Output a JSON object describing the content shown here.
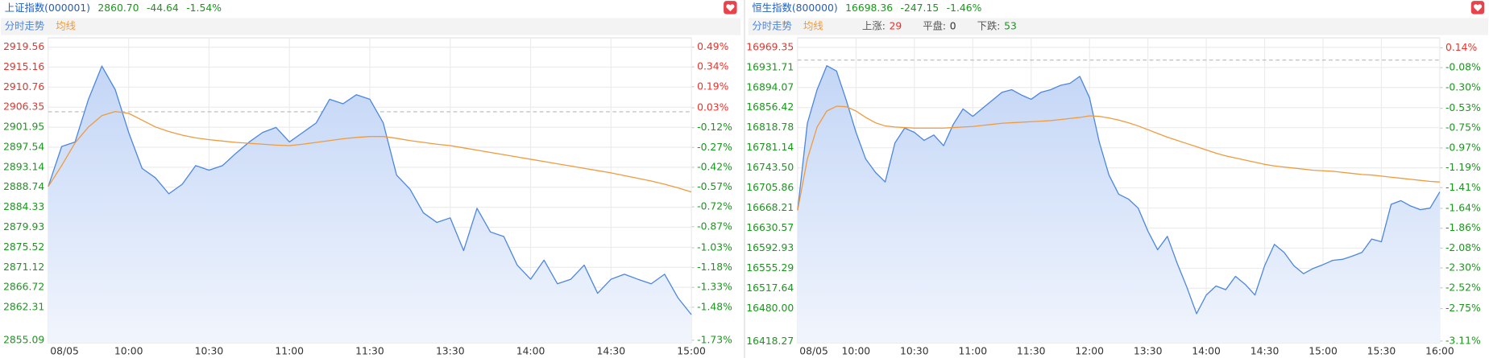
{
  "chart_data": [
    {
      "type": "line",
      "title": "上证指数(000001)",
      "last": "2860.70",
      "change": "-44.64",
      "change_pct": "-1.54%",
      "title_color": "#1f5fbf",
      "up_color": "#e8332b",
      "down_color": "#17991a",
      "prev_close": 2905.34,
      "x": [
        0,
        5,
        10,
        15,
        20,
        25,
        30,
        35,
        40,
        45,
        50,
        55,
        60,
        65,
        70,
        75,
        80,
        85,
        90,
        95,
        100,
        105,
        110,
        115,
        120,
        125,
        130,
        135,
        140,
        145,
        150,
        155,
        160,
        165,
        170,
        175,
        180,
        185,
        190,
        195,
        200,
        205,
        210,
        215,
        220,
        225,
        230,
        235,
        240
      ],
      "xlim": [
        0,
        240
      ],
      "xticks": [
        {
          "value": 0,
          "label": "08/05"
        },
        {
          "value": 30,
          "label": "10:00"
        },
        {
          "value": 60,
          "label": "10:30"
        },
        {
          "value": 90,
          "label": "11:00"
        },
        {
          "value": 120,
          "label": "11:30"
        },
        {
          "value": 150,
          "label": "13:30"
        },
        {
          "value": 180,
          "label": "14:00"
        },
        {
          "value": 210,
          "label": "14:30"
        },
        {
          "value": 240,
          "label": "15:00"
        }
      ],
      "ylim": [
        2854.5,
        2921.6
      ],
      "yticks": [
        2919.56,
        2915.16,
        2910.76,
        2906.35,
        2901.95,
        2897.54,
        2893.14,
        2888.74,
        2884.33,
        2879.93,
        2875.52,
        2871.12,
        2866.72,
        2862.31,
        2855.09
      ],
      "y2lim": [
        -1.75,
        0.56
      ],
      "y2ticks": [
        {
          "value": 0.49,
          "label": "0.49%"
        },
        {
          "value": 0.34,
          "label": "0.34%"
        },
        {
          "value": 0.19,
          "label": "0.19%"
        },
        {
          "value": 0.03,
          "label": "0.03%"
        },
        {
          "value": -0.12,
          "label": "-0.12%"
        },
        {
          "value": -0.27,
          "label": "-0.27%"
        },
        {
          "value": -0.42,
          "label": "-0.42%"
        },
        {
          "value": -0.57,
          "label": "-0.57%"
        },
        {
          "value": -0.72,
          "label": "-0.72%"
        },
        {
          "value": -0.87,
          "label": "-0.87%"
        },
        {
          "value": -1.03,
          "label": "-1.03%"
        },
        {
          "value": -1.18,
          "label": "-1.18%"
        },
        {
          "value": -1.33,
          "label": "-1.33%"
        },
        {
          "value": -1.48,
          "label": "-1.48%"
        },
        {
          "value": -1.73,
          "label": "-1.73%"
        }
      ],
      "grid": true,
      "series": [
        {
          "name": "分时走势",
          "color": "#4b86e0",
          "values": [
            2888.9,
            2897.7,
            2898.7,
            2908.1,
            2915.4,
            2910.2,
            2900.8,
            2892.9,
            2890.8,
            2887.3,
            2889.4,
            2893.5,
            2892.5,
            2893.5,
            2896.2,
            2898.7,
            2900.8,
            2901.9,
            2898.7,
            2900.8,
            2902.9,
            2908.1,
            2907.1,
            2909.1,
            2908.1,
            2902.9,
            2891.4,
            2888.3,
            2883.1,
            2881.0,
            2882.0,
            2874.8,
            2884.1,
            2878.9,
            2877.9,
            2871.6,
            2868.5,
            2872.7,
            2867.5,
            2868.5,
            2871.6,
            2865.4,
            2868.5,
            2869.6,
            2868.5,
            2867.5,
            2869.6,
            2864.4,
            2860.7
          ]
        },
        {
          "name": "均线",
          "color": "#f09a3e",
          "values": [
            2888.9,
            2893.5,
            2898.5,
            2902.0,
            2904.5,
            2905.4,
            2905.0,
            2903.5,
            2902.0,
            2901.0,
            2900.2,
            2899.6,
            2899.2,
            2898.9,
            2898.6,
            2898.4,
            2898.2,
            2898.0,
            2897.9,
            2898.2,
            2898.6,
            2899.0,
            2899.4,
            2899.7,
            2899.9,
            2899.9,
            2899.5,
            2899.0,
            2898.6,
            2898.2,
            2897.9,
            2897.4,
            2896.9,
            2896.4,
            2895.9,
            2895.4,
            2894.9,
            2894.4,
            2893.9,
            2893.4,
            2892.9,
            2892.4,
            2891.9,
            2891.3,
            2890.7,
            2890.1,
            2889.4,
            2888.6,
            2887.7
          ]
        }
      ]
    },
    {
      "type": "line",
      "title": "恒生指数(800000)",
      "last": "16698.36",
      "change": "-247.15",
      "change_pct": "-1.46%",
      "title_color": "#1f5fbf",
      "up_color": "#e8332b",
      "down_color": "#17991a",
      "prev_close": 16945.51,
      "stats": [
        {
          "label": "上涨:",
          "value": 29,
          "color": "#e8332b"
        },
        {
          "label": "平盘:",
          "value": 0,
          "color": "#333333"
        },
        {
          "label": "下跌:",
          "value": 53,
          "color": "#17991a"
        }
      ],
      "x": [
        0,
        5,
        10,
        15,
        20,
        25,
        30,
        35,
        40,
        45,
        50,
        55,
        60,
        65,
        70,
        75,
        80,
        85,
        90,
        95,
        100,
        105,
        110,
        115,
        120,
        125,
        130,
        135,
        140,
        145,
        150,
        155,
        160,
        165,
        170,
        175,
        180,
        185,
        190,
        195,
        200,
        205,
        210,
        215,
        220,
        225,
        230,
        235,
        240,
        245,
        250,
        255,
        260,
        265,
        270,
        275,
        280,
        285,
        290,
        295,
        300,
        305,
        310,
        315,
        320,
        325,
        330
      ],
      "xlim": [
        0,
        330
      ],
      "xticks": [
        {
          "value": 0,
          "label": "08/05"
        },
        {
          "value": 30,
          "label": "10:00"
        },
        {
          "value": 60,
          "label": "10:30"
        },
        {
          "value": 90,
          "label": "11:00"
        },
        {
          "value": 120,
          "label": "11:30"
        },
        {
          "value": 150,
          "label": "12:00"
        },
        {
          "value": 180,
          "label": "13:30"
        },
        {
          "value": 210,
          "label": "14:00"
        },
        {
          "value": 240,
          "label": "14:30"
        },
        {
          "value": 270,
          "label": "15:00"
        },
        {
          "value": 300,
          "label": "15:30"
        },
        {
          "value": 330,
          "label": "16:00"
        }
      ],
      "ylim": [
        16415.4,
        16987.1
      ],
      "yticks": [
        16969.35,
        16931.71,
        16894.07,
        16856.42,
        16818.78,
        16781.14,
        {
          "value": 16743.5,
          "label": "16743.50"
        },
        16705.86,
        16668.21,
        16630.57,
        16592.93,
        16555.29,
        16517.64,
        {
          "value": 16480,
          "label": "16480.00"
        },
        16418.27
      ],
      "y2lim": [
        -3.13,
        0.25
      ],
      "y2ticks": [
        {
          "value": 0.14,
          "label": "0.14%"
        },
        {
          "value": -0.08,
          "label": "-0.08%"
        },
        {
          "value": -0.3,
          "label": "-0.30%"
        },
        {
          "value": -0.53,
          "label": "-0.53%"
        },
        {
          "value": -0.75,
          "label": "-0.75%"
        },
        {
          "value": -0.97,
          "label": "-0.97%"
        },
        {
          "value": -1.19,
          "label": "-1.19%"
        },
        {
          "value": -1.41,
          "label": "-1.41%"
        },
        {
          "value": -1.64,
          "label": "-1.64%"
        },
        {
          "value": -1.86,
          "label": "-1.86%"
        },
        {
          "value": -2.08,
          "label": "-2.08%"
        },
        {
          "value": -2.3,
          "label": "-2.30%"
        },
        {
          "value": -2.52,
          "label": "-2.52%"
        },
        {
          "value": -2.75,
          "label": "-2.75%"
        },
        {
          "value": -3.11,
          "label": "-3.11%"
        }
      ],
      "grid": true,
      "series": [
        {
          "name": "分时走势",
          "color": "#4b86e0",
          "values": [
            16664,
            16827,
            16890,
            16935,
            16925,
            16870,
            16810,
            16760,
            16735,
            16717,
            16790,
            16818,
            16810,
            16795,
            16805,
            16785,
            16825,
            16854,
            16840,
            16855,
            16870,
            16885,
            16890,
            16880,
            16872,
            16885,
            16890,
            16898,
            16902,
            16915,
            16875,
            16792,
            16730,
            16694,
            16685,
            16668,
            16625,
            16590,
            16615,
            16565,
            16520,
            16470,
            16505,
            16522,
            16515,
            16540,
            16525,
            16505,
            16560,
            16600,
            16585,
            16560,
            16545,
            16555,
            16562,
            16570,
            16572,
            16578,
            16585,
            16610,
            16605,
            16675,
            16682,
            16672,
            16665,
            16668,
            16698.36
          ]
        },
        {
          "name": "均线",
          "color": "#f09a3e",
          "values": [
            16664,
            16760,
            16820,
            16850,
            16859,
            16858,
            16850,
            16838,
            16828,
            16822,
            16820,
            16819,
            16818,
            16818,
            16818,
            16818,
            16819,
            16820,
            16821,
            16823,
            16825,
            16827,
            16828,
            16829,
            16830,
            16831,
            16832,
            16834,
            16836,
            16838,
            16841,
            16840,
            16837,
            16833,
            16828,
            16822,
            16815,
            16808,
            16801,
            16795,
            16789,
            16783,
            16777,
            16771,
            16766,
            16762,
            16758,
            16754,
            16750,
            16747,
            16745,
            16743,
            16741,
            16739,
            16738,
            16737,
            16735,
            16733,
            16731,
            16730,
            16728,
            16726,
            16724,
            16722,
            16720,
            16718,
            16717
          ]
        }
      ]
    }
  ]
}
